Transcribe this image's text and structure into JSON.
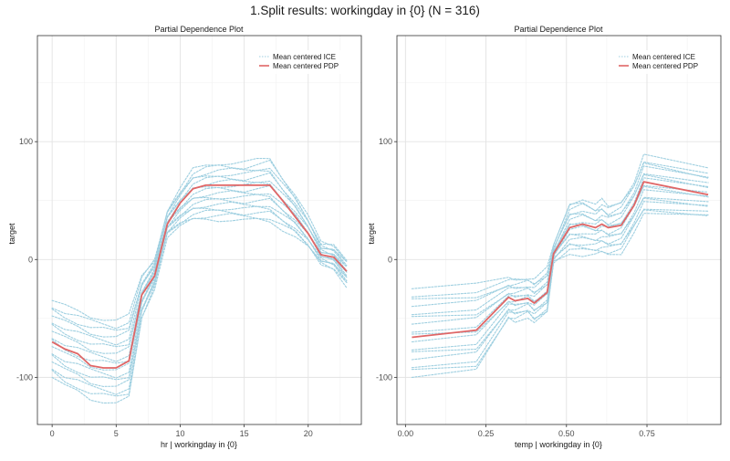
{
  "suptitle": "1.Split results: workingday in {0} (N = 316)",
  "colors": {
    "ice": "#9ecfe0",
    "pdp": "#e06666",
    "grid_major": "#e3e3e3",
    "grid_minor": "#f1f1f1",
    "panel_border": "#333333",
    "axis_text": "#4d4d4d"
  },
  "chart_data": [
    {
      "type": "line",
      "title": "Partial Dependence Plot",
      "xlabel": "hr | workingday in {0}",
      "ylabel": "target",
      "xlim": [
        -1.15,
        24.15
      ],
      "ylim": [
        -140,
        190
      ],
      "xticks": [
        0,
        5,
        10,
        15,
        20
      ],
      "xtick_labels": [
        "0",
        "5",
        "10",
        "15",
        "20"
      ],
      "yticks": [
        -100,
        0,
        100
      ],
      "ytick_labels": [
        "-100",
        "0",
        "100"
      ],
      "grid": true,
      "legend": {
        "position": "top-right",
        "entries": [
          {
            "label": "Mean centered ICE",
            "style": "dotted"
          },
          {
            "label": "Mean centered PDP",
            "style": "solid"
          }
        ]
      },
      "x": [
        0,
        1,
        2,
        3,
        4,
        5,
        6,
        7,
        8,
        9,
        10,
        11,
        12,
        13,
        14,
        15,
        16,
        17,
        18,
        19,
        20,
        21,
        22,
        23
      ],
      "series": [
        {
          "role": "pdp",
          "values": [
            -70,
            -76,
            -80,
            -90,
            -92,
            -92,
            -86,
            -30,
            -14,
            30,
            48,
            60,
            63,
            63,
            63,
            63,
            63,
            63,
            50,
            36,
            22,
            4,
            2,
            -10
          ]
        }
      ],
      "ice_bands": {
        "upper": [
          -35,
          -40,
          -44,
          -48,
          -50,
          -52,
          -48,
          -14,
          0,
          42,
          60,
          76,
          80,
          82,
          82,
          82,
          84,
          86,
          70,
          55,
          36,
          14,
          12,
          0
        ],
        "lower": [
          -100,
          -108,
          -112,
          -118,
          -120,
          -122,
          -118,
          -50,
          -24,
          20,
          28,
          33,
          34,
          34,
          34,
          33,
          33,
          32,
          26,
          20,
          10,
          -4,
          -8,
          -22
        ]
      }
    },
    {
      "type": "line",
      "title": "Partial Dependence Plot",
      "xlabel": "temp | workingday in {0}",
      "ylabel": "target",
      "xlim": [
        -0.0265,
        0.9795
      ],
      "ylim": [
        -140,
        190
      ],
      "xticks": [
        0,
        0.25,
        0.5,
        0.75
      ],
      "xtick_labels": [
        "0.00",
        "0.25",
        "0.50",
        "0.75"
      ],
      "yticks": [
        -100,
        0,
        100
      ],
      "ytick_labels": [
        "-100",
        "0",
        "100"
      ],
      "grid": true,
      "legend": {
        "position": "top-right",
        "entries": [
          {
            "label": "Mean centered ICE",
            "style": "dotted"
          },
          {
            "label": "Mean centered PDP",
            "style": "solid"
          }
        ]
      },
      "x": [
        0.02,
        0.22,
        0.32,
        0.34,
        0.38,
        0.4,
        0.44,
        0.46,
        0.51,
        0.55,
        0.59,
        0.61,
        0.63,
        0.67,
        0.71,
        0.74,
        0.94
      ],
      "series": [
        {
          "role": "pdp",
          "values": [
            -66,
            -60,
            -32,
            -35,
            -33,
            -37,
            -28,
            5,
            27,
            30,
            27,
            30,
            27,
            29,
            46,
            66,
            55
          ]
        }
      ],
      "ice_bands": {
        "upper": [
          -25,
          -22,
          -16,
          -16,
          -15,
          -17,
          -8,
          12,
          48,
          52,
          46,
          50,
          45,
          50,
          66,
          88,
          76
        ],
        "lower": [
          -100,
          -95,
          -50,
          -52,
          -48,
          -54,
          -46,
          -2,
          6,
          4,
          4,
          5,
          4,
          6,
          24,
          38,
          36
        ]
      }
    }
  ]
}
